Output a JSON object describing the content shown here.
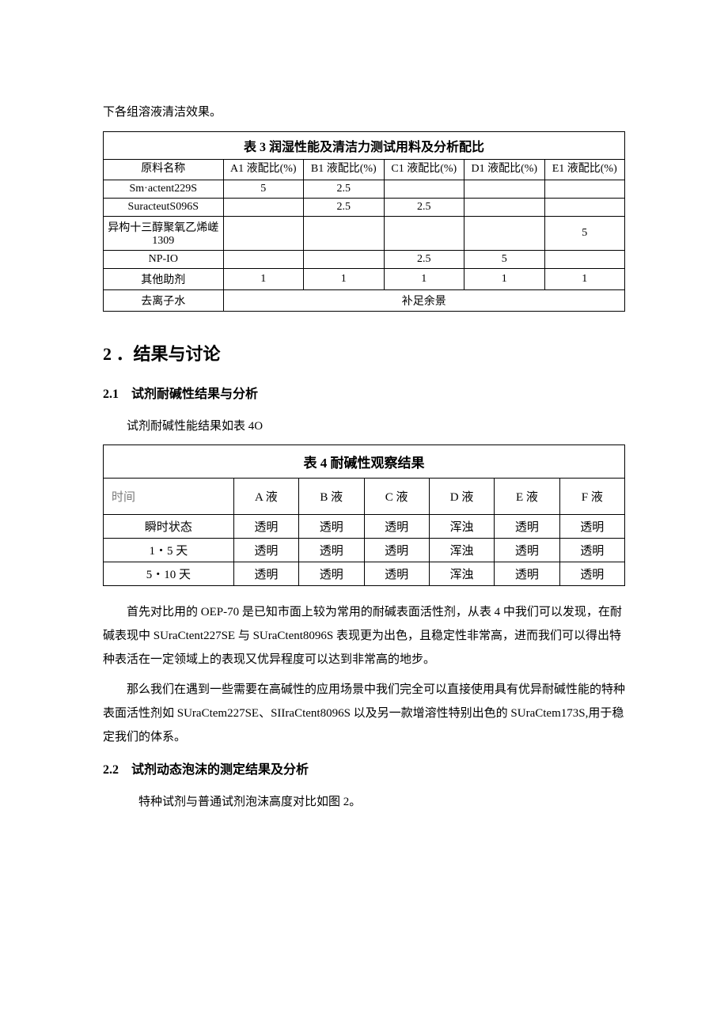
{
  "intro_line": "下各组溶液清洁效果。",
  "table3": {
    "caption": "表 3 润湿性能及清洁力测试用料及分析配比",
    "row_label_header": "原料名称",
    "col_headers": [
      "A1 液配比(%)",
      "B1 液配比(%)",
      "C1 液配比(%)",
      "D1 液配比(%)",
      "E1 液配比(%)"
    ],
    "rows": [
      {
        "label": "Sm·actent229S",
        "cells": [
          "5",
          "2.5",
          "",
          "",
          ""
        ]
      },
      {
        "label": "SuracteutS096S",
        "cells": [
          "",
          "2.5",
          "2.5",
          "",
          ""
        ]
      },
      {
        "label": "异构十三醇聚氧乙烯嵯 1309",
        "cells": [
          "",
          "",
          "",
          "",
          "5"
        ]
      },
      {
        "label": "NP-IO",
        "cells": [
          "",
          "",
          "2.5",
          "5",
          ""
        ]
      },
      {
        "label": "其他助剂",
        "cells": [
          "1",
          "1",
          "1",
          "1",
          "1"
        ]
      }
    ],
    "footer_label": "去离子水",
    "footer_value": "补足余景"
  },
  "h1": "2 ．结果与讨论",
  "section21": {
    "heading": "2.1 试剂耐碱性结果与分析",
    "lead": "试剂耐碱性能结果如表 4O"
  },
  "table4": {
    "caption": "表 4 耐碱性观察结果",
    "time_header": "时间",
    "col_headers": [
      "A 液",
      "B 液",
      "C 液",
      "D 液",
      "E 液",
      "F 液"
    ],
    "rows": [
      {
        "label": "瞬时状态",
        "cells": [
          "透明",
          "透明",
          "透明",
          "浑浊",
          "透明",
          "透明"
        ]
      },
      {
        "label": "1・5 天",
        "cells": [
          "透明",
          "透明",
          "透明",
          "浑浊",
          "透明",
          "透明"
        ]
      },
      {
        "label": "5・10 天",
        "cells": [
          "透明",
          "透明",
          "透明",
          "浑浊",
          "透明",
          "透明"
        ]
      }
    ]
  },
  "para1": "首先对比用的 OEP-70 是已知市面上较为常用的耐碱表面活性剂，从表 4 中我们可以发现，在耐碱表现中 SUraCtent227SE 与 SUraCtent8096S 表现更为出色，且稳定性非常高，进而我们可以得出特种表活在一定领域上的表现又优异程度可以达到非常高的地步。",
  "para2": "那么我们在遇到一些需要在高碱性的应用场景中我们完全可以直接使用具有优异耐碱性能的特种表面活性剂如 SUraCtem227SE、SIIraCtent8096S 以及另一款增溶性特别出色的 SUraCtem173S,用于稳定我们的体系。",
  "section22": {
    "heading": "2.2 试剂动态泡沫的测定结果及分析",
    "lead": "特种试剂与普通试剂泡沫高度对比如图 2。"
  }
}
